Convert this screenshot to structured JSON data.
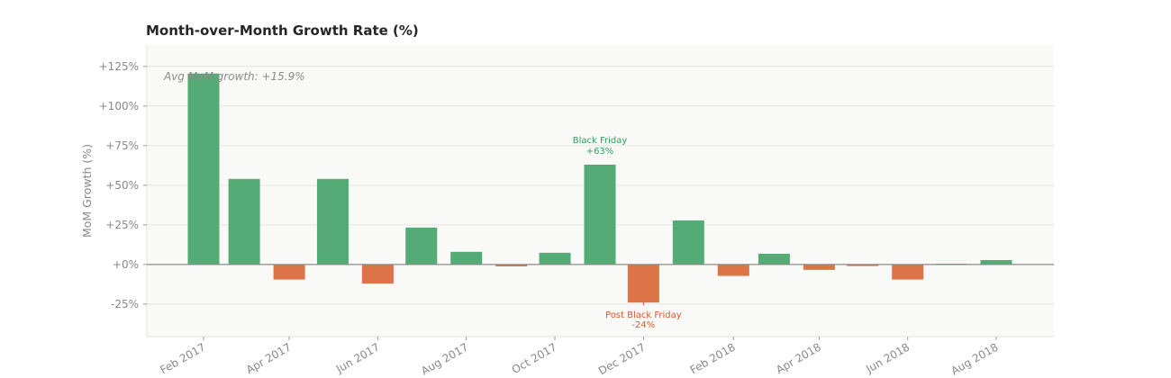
{
  "chart_data": {
    "type": "bar",
    "title": "Month-over-Month Growth Rate (%)",
    "xlabel": "",
    "ylabel": "MoM Growth (%)",
    "ylim": [
      -45.5,
      138.5
    ],
    "grid": true,
    "yticks": [
      -25,
      0,
      25,
      50,
      75,
      100,
      125
    ],
    "ytick_labels": [
      "-25%",
      "+0%",
      "+25%",
      "+50%",
      "+75%",
      "+100%",
      "+125%"
    ],
    "xtick_labels": [
      "Feb 2017",
      "Apr 2017",
      "Jun 2017",
      "Aug 2017",
      "Oct 2017",
      "Dec 2017",
      "Feb 2018",
      "Apr 2018",
      "Jun 2018",
      "Aug 2018"
    ],
    "xtick_dates": [
      "2017-02-01",
      "2017-04-01",
      "2017-06-01",
      "2017-08-01",
      "2017-10-01",
      "2017-12-01",
      "2018-02-01",
      "2018-04-01",
      "2018-06-01",
      "2018-08-01"
    ],
    "dates": [
      "2017-02-01",
      "2017-03-01",
      "2017-04-01",
      "2017-05-01",
      "2017-06-01",
      "2017-07-01",
      "2017-08-01",
      "2017-09-01",
      "2017-10-01",
      "2017-11-01",
      "2017-12-01",
      "2018-01-01",
      "2018-02-01",
      "2018-03-01",
      "2018-04-01",
      "2018-05-01",
      "2018-06-01",
      "2018-07-01",
      "2018-08-01"
    ],
    "values": [
      120.5,
      54,
      -9.5,
      54,
      -12,
      23.3,
      8,
      -1.2,
      7.4,
      63,
      -24,
      27.8,
      -7.2,
      6.8,
      -3.4,
      -1,
      -9.5,
      0.5,
      2.8
    ],
    "colors": {
      "positive": "#55ab76",
      "negative": "#dc7448",
      "annotation_positive": "#2e9e5b",
      "annotation_negative": "#d9582a"
    },
    "annotations": [
      {
        "date": "2017-11-01",
        "value": 63,
        "line1": "Black Friday",
        "line2": "+63%"
      },
      {
        "date": "2017-12-01",
        "value": -24,
        "line1": "Post Black Friday",
        "line2": "-24%"
      }
    ],
    "avg_text": "Avg MoM growth: +15.9%"
  }
}
